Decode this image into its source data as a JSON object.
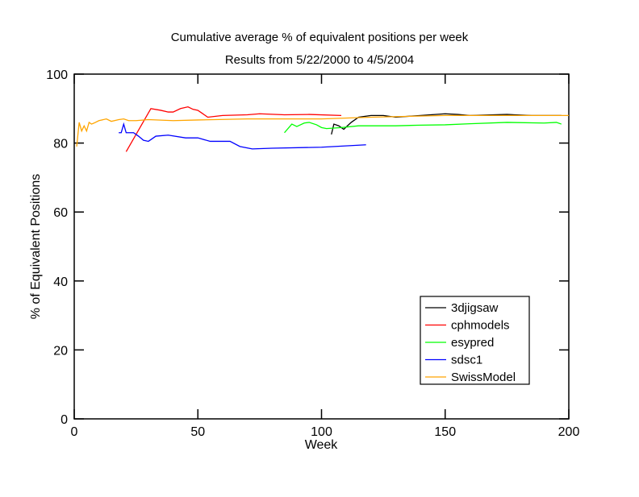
{
  "chart_data": {
    "type": "line",
    "title": "Cumulative average % of equivalent positions per week",
    "subtitle": "Results from 5/22/2000 to  4/5/2004",
    "xlabel": "Week",
    "ylabel": "% of Equivalent Positions",
    "xlim": [
      0,
      200
    ],
    "ylim": [
      0,
      100
    ],
    "xticks": [
      0,
      50,
      100,
      150,
      200
    ],
    "yticks": [
      0,
      20,
      40,
      60,
      80,
      100
    ],
    "grid": false,
    "legend_position": "bottom-right",
    "series": [
      {
        "name": "3djigsaw",
        "color": "#000000",
        "x": [
          104,
          105,
          107,
          109,
          112,
          115,
          120,
          125,
          130,
          140,
          150,
          155,
          160,
          175,
          185,
          197
        ],
        "y": [
          82.5,
          85.5,
          85,
          84,
          86,
          87.5,
          88,
          88,
          87.5,
          88,
          88.5,
          88.3,
          88,
          88.3,
          88,
          88
        ]
      },
      {
        "name": "cphmodels",
        "color": "#ff0000",
        "x": [
          21,
          31,
          35,
          38,
          40,
          43,
          46,
          48,
          50,
          52,
          54,
          60,
          70,
          75,
          85,
          95,
          108
        ],
        "y": [
          77.5,
          90,
          89.5,
          89,
          89,
          90,
          90.5,
          89.8,
          89.5,
          88.5,
          87.5,
          88,
          88.2,
          88.5,
          88.2,
          88.3,
          88
        ]
      },
      {
        "name": "esypred",
        "color": "#00ff00",
        "x": [
          85,
          88,
          90,
          93,
          95,
          98,
          100,
          102,
          108,
          115,
          130,
          140,
          150,
          160,
          175,
          190,
          195,
          197
        ],
        "y": [
          83,
          85.5,
          84.8,
          85.8,
          86,
          85.3,
          84.5,
          84.2,
          84.5,
          85,
          85,
          85.2,
          85.3,
          85.6,
          86,
          85.8,
          86,
          85.5
        ]
      },
      {
        "name": "sdsc1",
        "color": "#0000ff",
        "x": [
          18,
          19,
          20,
          21,
          24,
          26,
          28,
          30,
          33,
          38,
          45,
          50,
          55,
          63,
          67,
          72,
          80,
          100,
          118
        ],
        "y": [
          83,
          83,
          85.5,
          83,
          83,
          82,
          80.8,
          80.5,
          82,
          82.3,
          81.5,
          81.5,
          80.5,
          80.5,
          79,
          78.3,
          78.5,
          78.8,
          79.5
        ]
      },
      {
        "name": "SwissModel",
        "color": "#ffa500",
        "x": [
          1,
          2,
          3,
          4,
          5,
          6,
          7,
          8,
          10,
          13,
          15,
          18,
          20,
          22,
          25,
          30,
          40,
          50,
          70,
          100,
          120,
          150,
          200
        ],
        "y": [
          79,
          86,
          83.5,
          85,
          83.5,
          86,
          85.5,
          85.8,
          86.5,
          87,
          86.3,
          86.8,
          87,
          86.5,
          86.5,
          86.8,
          86.5,
          86.7,
          87,
          87,
          87.5,
          88,
          88
        ]
      }
    ]
  }
}
